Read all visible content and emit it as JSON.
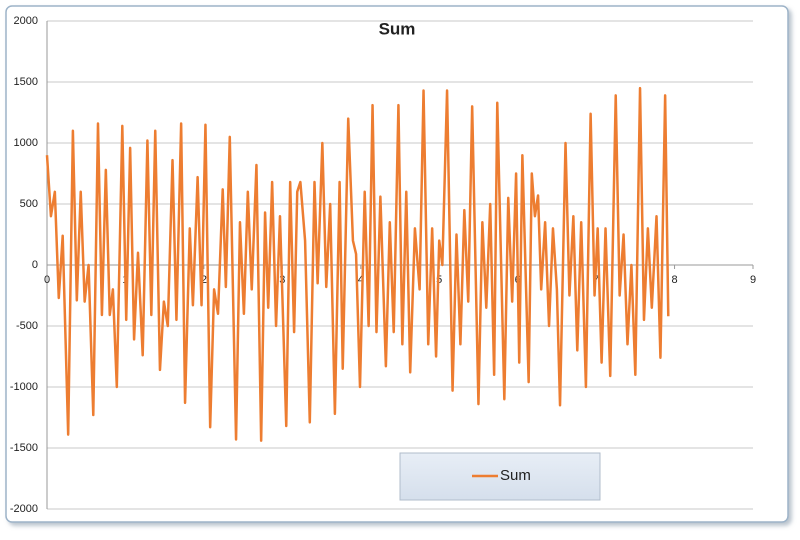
{
  "chart_data": {
    "type": "line",
    "title": "Sum",
    "x": [
      0,
      0.05,
      0.1,
      0.15,
      0.2,
      0.27,
      0.33,
      0.38,
      0.43,
      0.48,
      0.53,
      0.59,
      0.65,
      0.7,
      0.75,
      0.8,
      0.84,
      0.89,
      0.96,
      1.01,
      1.06,
      1.11,
      1.16,
      1.22,
      1.28,
      1.33,
      1.38,
      1.44,
      1.49,
      1.54,
      1.6,
      1.65,
      1.71,
      1.76,
      1.82,
      1.86,
      1.92,
      1.97,
      2.02,
      2.08,
      2.13,
      2.18,
      2.24,
      2.28,
      2.33,
      2.41,
      2.46,
      2.51,
      2.56,
      2.61,
      2.67,
      2.73,
      2.78,
      2.82,
      2.87,
      2.92,
      2.97,
      3.05,
      3.1,
      3.15,
      3.19,
      3.23,
      3.29,
      3.35,
      3.41,
      3.45,
      3.51,
      3.56,
      3.61,
      3.67,
      3.73,
      3.77,
      3.84,
      3.9,
      3.94,
      3.99,
      4.05,
      4.1,
      4.15,
      4.2,
      4.25,
      4.32,
      4.37,
      4.42,
      4.48,
      4.53,
      4.58,
      4.63,
      4.69,
      4.75,
      4.8,
      4.86,
      4.91,
      4.96,
      5,
      5.04,
      5.1,
      5.17,
      5.22,
      5.27,
      5.32,
      5.37,
      5.42,
      5.5,
      5.55,
      5.6,
      5.65,
      5.7,
      5.74,
      5.83,
      5.88,
      5.93,
      5.98,
      6.02,
      6.06,
      6.14,
      6.18,
      6.22,
      6.26,
      6.3,
      6.35,
      6.4,
      6.45,
      6.5,
      6.54,
      6.61,
      6.66,
      6.71,
      6.76,
      6.81,
      6.87,
      6.93,
      6.98,
      7.02,
      7.07,
      7.12,
      7.18,
      7.25,
      7.3,
      7.35,
      7.4,
      7.45,
      7.5,
      7.56,
      7.61,
      7.66,
      7.71,
      7.77,
      7.82,
      7.88,
      7.92
    ],
    "series": [
      {
        "name": "Sum",
        "color": "#ed7d31",
        "values": [
          900,
          400,
          600,
          -270,
          240,
          -1390,
          1100,
          -290,
          600,
          -300,
          0,
          -1230,
          1160,
          -410,
          780,
          -410,
          -200,
          -1000,
          1140,
          -450,
          960,
          -610,
          100,
          -740,
          1020,
          -410,
          1100,
          -860,
          -300,
          -500,
          860,
          -450,
          1160,
          -1130,
          300,
          -330,
          720,
          -330,
          1150,
          -1330,
          -200,
          -400,
          620,
          -180,
          1050,
          -1430,
          350,
          -400,
          600,
          -200,
          820,
          -1440,
          430,
          -350,
          680,
          -500,
          400,
          -1320,
          680,
          -550,
          600,
          680,
          200,
          -1290,
          680,
          -150,
          1000,
          -180,
          500,
          -1220,
          680,
          -850,
          1200,
          200,
          90,
          -1000,
          600,
          -500,
          1310,
          -550,
          560,
          -830,
          350,
          -550,
          1310,
          -650,
          600,
          -880,
          300,
          -200,
          1430,
          -650,
          300,
          -750,
          200,
          0,
          1430,
          -1030,
          250,
          -650,
          450,
          -300,
          1300,
          -1140,
          350,
          -350,
          500,
          -900,
          1330,
          -1100,
          550,
          -300,
          750,
          -800,
          900,
          -960,
          750,
          400,
          570,
          -200,
          350,
          -500,
          300,
          -200,
          -1150,
          1000,
          -250,
          400,
          -700,
          350,
          -1000,
          1240,
          -250,
          300,
          -800,
          300,
          -910,
          1390,
          -250,
          250,
          -650,
          0,
          -900,
          1450,
          -450,
          300,
          -350,
          400,
          -760,
          1390,
          -420
        ]
      }
    ],
    "xlim": [
      0,
      9
    ],
    "xticks": [
      0,
      1,
      2,
      3,
      4,
      5,
      6,
      7,
      8,
      9
    ],
    "ylim": [
      -2000,
      2000
    ],
    "yticks": [
      -2000,
      -1500,
      -1000,
      -500,
      0,
      500,
      1000,
      1500,
      2000
    ],
    "grid": true,
    "legend": "bottom"
  }
}
